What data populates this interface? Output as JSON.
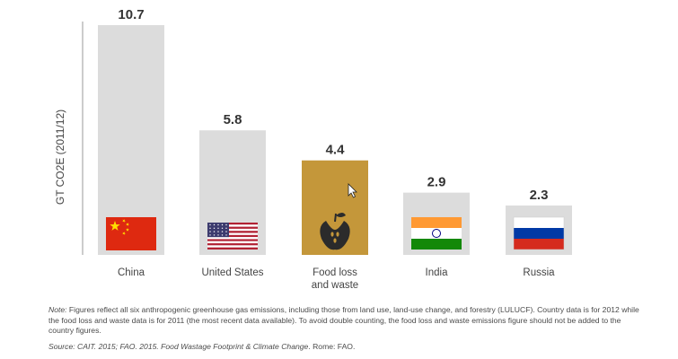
{
  "chart_data": {
    "type": "bar",
    "ylabel": "GT CO2E (2011/12)",
    "ylim": [
      0,
      11
    ],
    "grid": false,
    "categories": [
      "China",
      "United States",
      "Food loss and waste",
      "India",
      "Russia"
    ],
    "category_lines": [
      [
        "China"
      ],
      [
        "United States"
      ],
      [
        "Food loss",
        "and waste"
      ],
      [
        "India"
      ],
      [
        "Russia"
      ]
    ],
    "values": [
      10.7,
      5.8,
      4.4,
      2.9,
      2.3
    ],
    "value_labels": [
      "10.7",
      "5.8",
      "4.4",
      "2.9",
      "2.3"
    ],
    "bar_colors": [
      "#dcdcdc",
      "#dcdcdc",
      "#c4973a",
      "#dcdcdc",
      "#dcdcdc"
    ],
    "icons": [
      "china-flag-icon",
      "us-flag-icon",
      "apple-core-icon",
      "india-flag-icon",
      "russia-flag-icon"
    ]
  },
  "note": {
    "label": "Note:",
    "text": " Figures reflect all six anthropogenic greenhouse gas emissions, including those from land use, land-use change, and forestry (LULUCF).  Country data is for 2012 while the food loss and waste data is for 2011 (the most recent data available). To avoid double counting, the food loss and waste emissions figure should not be added to the country figures."
  },
  "source": {
    "prefix": "Source: CAIT. 2015; FAO. 2015. ",
    "title": "Food Wastage Footprint & Climate Change",
    "suffix": ". Rome: FAO."
  }
}
